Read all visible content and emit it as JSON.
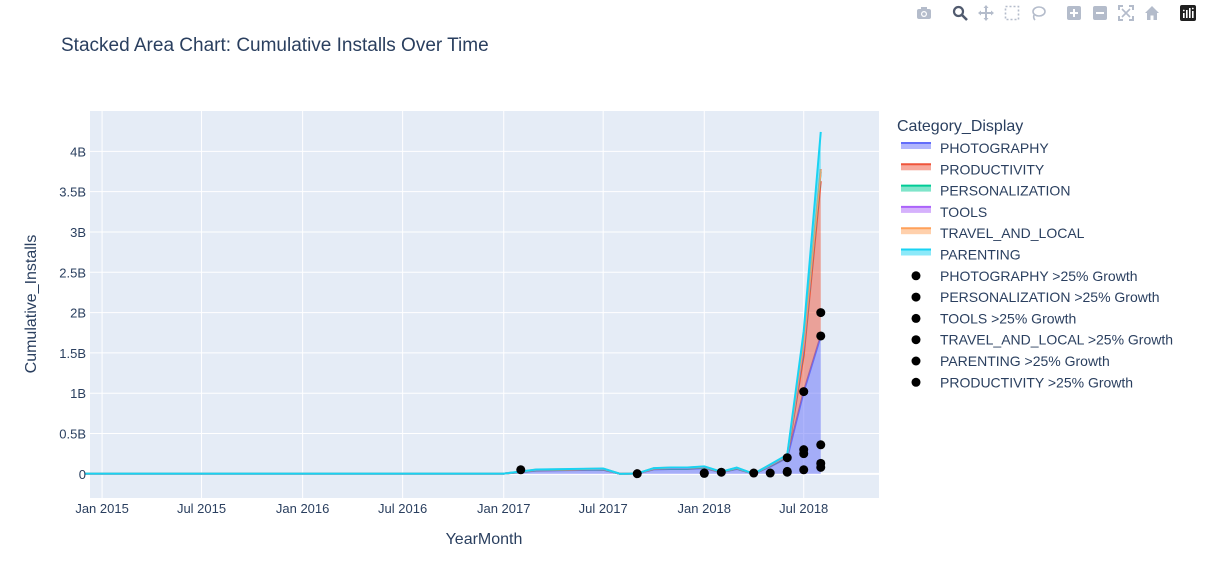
{
  "modebar": {
    "buttons": [
      "camera-icon",
      "zoom-icon",
      "pan-icon",
      "box-select-icon",
      "lasso-select-icon",
      "zoom-in-icon",
      "zoom-out-icon",
      "autoscale-icon",
      "reset-axes-icon",
      "plotly-logo-icon"
    ]
  },
  "chart_data": {
    "type": "area",
    "title": "Stacked Area Chart: Cumulative Installs Over Time",
    "xlabel": "YearMonth",
    "ylabel": "Cumulative_Installs",
    "x_tick_labels": [
      "Jan 2015",
      "Jul 2015",
      "Jan 2016",
      "Jul 2016",
      "Jan 2017",
      "Jul 2017",
      "Jan 2018",
      "Jul 2018"
    ],
    "x_ticks": [
      "2015-01",
      "2015-07",
      "2016-01",
      "2016-07",
      "2017-01",
      "2017-07",
      "2018-01",
      "2018-07"
    ],
    "y_tick_labels": [
      "0",
      "0.5B",
      "1B",
      "1.5B",
      "2B",
      "2.5B",
      "3B",
      "3.5B",
      "4B"
    ],
    "y_ticks": [
      0,
      0.5,
      1,
      1.5,
      2,
      2.5,
      3,
      3.5,
      4
    ],
    "y_unit": "billions",
    "xlim": [
      "2014-12-10",
      "2018-11-15"
    ],
    "ylim": [
      -0.3,
      4.5
    ],
    "grid": true,
    "legend_title": "Category_Display",
    "legend_position": "right",
    "x": [
      "2014-12",
      "2015-06",
      "2016-06",
      "2016-12",
      "2017-01",
      "2017-02",
      "2017-03",
      "2017-05",
      "2017-07",
      "2017-08",
      "2017-09",
      "2017-10",
      "2017-11",
      "2017-12",
      "2018-01",
      "2018-02",
      "2018-03",
      "2018-04",
      "2018-05",
      "2018-06",
      "2018-07",
      "2018-08"
    ],
    "series": [
      {
        "name": "PHOTOGRAPHY",
        "color": "#636efa",
        "values": [
          0.003,
          0.003,
          0.003,
          0.003,
          0.003,
          0.02,
          0.04,
          0.045,
          0.05,
          0.0,
          0.004,
          0.055,
          0.06,
          0.06,
          0.07,
          0.02,
          0.06,
          0.0,
          0.09,
          0.2,
          1.02,
          1.71
        ]
      },
      {
        "name": "PRODUCTIVITY",
        "color": "#ef553b",
        "values": [
          0,
          0,
          0,
          0,
          0,
          0.002,
          0.004,
          0.004,
          0.005,
          0,
          0.001,
          0.005,
          0.006,
          0.006,
          0.006,
          0.002,
          0.005,
          0,
          0.008,
          0.01,
          0.45,
          1.92
        ]
      },
      {
        "name": "PERSONALIZATION",
        "color": "#00cc96",
        "values": [
          0,
          0,
          0,
          0,
          0,
          0.001,
          0.002,
          0.002,
          0.002,
          0,
          0,
          0.002,
          0.002,
          0.002,
          0.003,
          0.001,
          0.002,
          0,
          0.003,
          0.005,
          0.1,
          0.12
        ]
      },
      {
        "name": "TOOLS",
        "color": "#ab63fa",
        "values": [
          0,
          0,
          0,
          0,
          0,
          0.002,
          0.003,
          0.003,
          0.003,
          0,
          0,
          0.003,
          0.004,
          0.004,
          0.005,
          0.001,
          0.004,
          0,
          0.006,
          0.008,
          0.02,
          0.03
        ]
      },
      {
        "name": "TRAVEL_AND_LOCAL",
        "color": "#ffa15a",
        "values": [
          0,
          0,
          0,
          0,
          0,
          0.002,
          0.003,
          0.003,
          0.004,
          0,
          0,
          0.004,
          0.004,
          0.004,
          0.005,
          0.001,
          0.004,
          0,
          0.006,
          0.008,
          0.05,
          0.0
        ]
      },
      {
        "name": "PARENTING",
        "color": "#19d3f3",
        "values": [
          0,
          0,
          0,
          0,
          0,
          0.001,
          0.002,
          0.002,
          0.002,
          0,
          0,
          0.002,
          0.002,
          0.002,
          0.003,
          0.001,
          0.002,
          0,
          0.003,
          0.005,
          0.13,
          0.46
        ]
      }
    ],
    "growth_markers": [
      {
        "name": "PHOTOGRAPHY >25% Growth",
        "color": "#000000",
        "points": [
          [
            "2017-02",
            0.05
          ],
          [
            "2018-01",
            0.01
          ],
          [
            "2018-02",
            0.02
          ],
          [
            "2018-06",
            0.2
          ],
          [
            "2018-07",
            1.02
          ],
          [
            "2018-08",
            1.71
          ]
        ]
      },
      {
        "name": "PERSONALIZATION >25% Growth",
        "color": "#000000",
        "points": [
          [
            "2017-09",
            0.002
          ],
          [
            "2018-04",
            0.01
          ],
          [
            "2018-07",
            0.3
          ],
          [
            "2018-08",
            0.36
          ]
        ]
      },
      {
        "name": "TOOLS >25% Growth",
        "color": "#000000",
        "points": [
          [
            "2018-05",
            0.01
          ],
          [
            "2018-07",
            0.25
          ],
          [
            "2018-08",
            0.13
          ]
        ]
      },
      {
        "name": "TRAVEL_AND_LOCAL >25% Growth",
        "color": "#000000",
        "points": [
          [
            "2018-06",
            0.02
          ],
          [
            "2018-08",
            0.08
          ]
        ]
      },
      {
        "name": "PARENTING >25% Growth",
        "color": "#000000",
        "points": [
          [
            "2018-06",
            0.03
          ],
          [
            "2018-07",
            0.05
          ]
        ]
      },
      {
        "name": "PRODUCTIVITY >25% Growth",
        "color": "#000000",
        "points": [
          [
            "2018-08",
            2.0
          ],
          [
            "2018-01",
            0.005
          ]
        ]
      }
    ]
  }
}
